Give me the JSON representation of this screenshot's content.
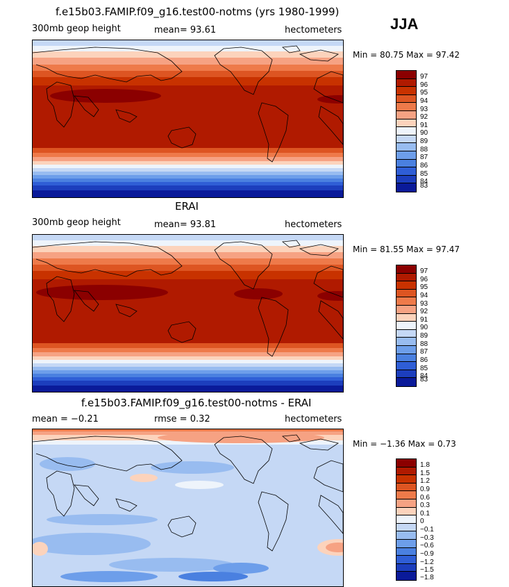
{
  "season": "JJA",
  "panels": [
    {
      "title": "f.e15b03.FAMIP.f09_g16.test00-notms (yrs 1980-1999)",
      "left_label": "300mb geop height",
      "center_label": "mean=   93.61",
      "units": "hectometers",
      "minmax": "Min =  80.75 Max =  97.42",
      "colorbar_labels": [
        "97",
        "96",
        "95",
        "94",
        "93",
        "92",
        "91",
        "90",
        "89",
        "88",
        "87",
        "86",
        "85",
        "84",
        "83"
      ]
    },
    {
      "title": "ERAI",
      "left_label": "300mb geop height",
      "center_label": "mean=   93.81",
      "units": "hectometers",
      "minmax": "Min =  81.55 Max =  97.47",
      "colorbar_labels": [
        "97",
        "96",
        "95",
        "94",
        "93",
        "92",
        "91",
        "90",
        "89",
        "88",
        "87",
        "86",
        "85",
        "84",
        "83"
      ]
    },
    {
      "title": "f.e15b03.FAMIP.f09_g16.test00-notms - ERAI",
      "left_label": "mean =   −0.21",
      "center_label": "rmse =     0.32",
      "units": "hectometers",
      "minmax": "Min =  −1.36 Max =   0.73",
      "colorbar_labels": [
        "1.8",
        "1.5",
        "1.2",
        "0.9",
        "0.6",
        "0.3",
        "0.1",
        "0",
        "−0.1",
        "−0.3",
        "−0.6",
        "−0.9",
        "−1.2",
        "−1.5",
        "−1.8"
      ]
    }
  ],
  "colors": {
    "abs_scale": [
      "#8b0000",
      "#b01a00",
      "#c83200",
      "#dd5522",
      "#ee7a4a",
      "#f6a283",
      "#fcd3bc",
      "#eef4fb",
      "#c5d8f5",
      "#98bcf0",
      "#6d9eea",
      "#4a80e0",
      "#2f5ed6",
      "#1c3ebd",
      "#0a1a99"
    ],
    "diff_scale": [
      "#8b0000",
      "#b01a00",
      "#c83200",
      "#dd5522",
      "#ee7a4a",
      "#f6a283",
      "#fcd3bc",
      "#eef4fb",
      "#c5d8f5",
      "#98bcf0",
      "#6d9eea",
      "#4a80e0",
      "#2f5ed6",
      "#1c3ebd",
      "#0a1a99"
    ]
  }
}
